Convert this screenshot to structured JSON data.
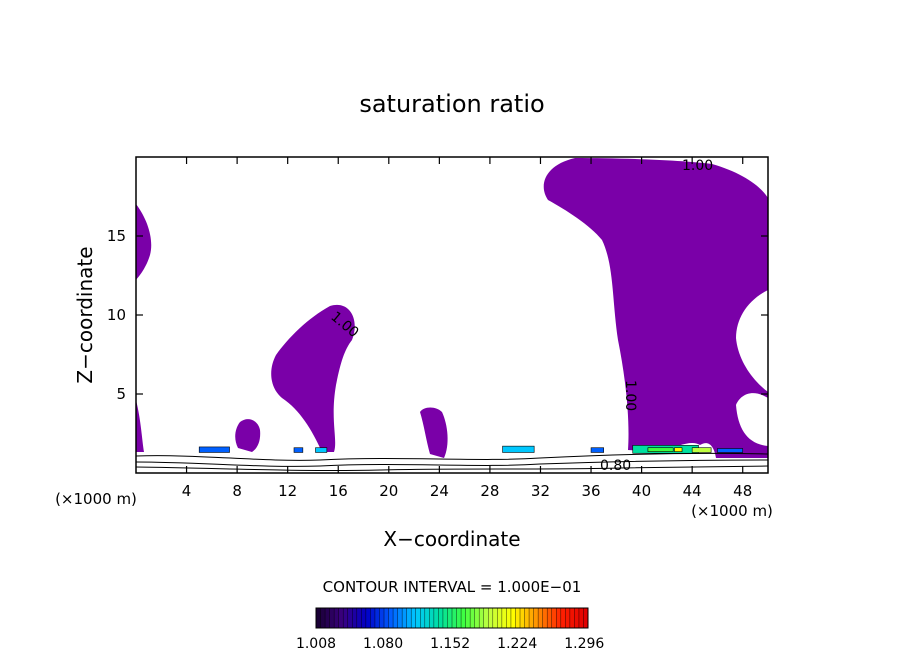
{
  "chart_data": {
    "type": "contour",
    "title": "saturation ratio",
    "xlabel": "X−coordinate",
    "ylabel": "Z−coordinate",
    "x_unit_left": "(×1000 m)",
    "x_unit_right": "(×1000 m)",
    "xlim": [
      0,
      50
    ],
    "ylim": [
      0,
      20
    ],
    "x_ticks": [
      "4",
      "8",
      "12",
      "16",
      "20",
      "24",
      "28",
      "32",
      "36",
      "40",
      "44",
      "48"
    ],
    "y_ticks": [
      "5",
      "10",
      "15"
    ],
    "contour_labels": [
      "1.00",
      "1.00",
      "1.00",
      "0.80"
    ],
    "contour_interval_text": "CONTOUR INTERVAL = 1.000E−01",
    "fill_color": "#7a00a8",
    "colorbar": {
      "ticks": [
        "1.008",
        "1.080",
        "1.152",
        "1.224",
        "1.296"
      ],
      "range": [
        1.008,
        1.3
      ],
      "colors": [
        "#1a0036",
        "#3a0080",
        "#0000c8",
        "#0060ff",
        "#00c8ff",
        "#00e0a0",
        "#40ff40",
        "#c0ff40",
        "#ffff00",
        "#ff9000",
        "#ff2000",
        "#e00000"
      ]
    },
    "saturated_regions": [
      {
        "name": "left-edge-upper",
        "x_range": [
          0,
          1.5
        ],
        "z_range": [
          12.3,
          17.1
        ]
      },
      {
        "name": "left-edge-lower",
        "x_range": [
          0,
          1
        ],
        "z_range": [
          1.3,
          4.5
        ]
      },
      {
        "name": "cloud-near-x14",
        "x_range": [
          11,
          17
        ],
        "z_range": [
          1.0,
          10.6
        ]
      },
      {
        "name": "cloud-near-x8",
        "x_range": [
          8,
          10
        ],
        "z_range": [
          1.2,
          3.3
        ]
      },
      {
        "name": "cloud-near-x23",
        "x_range": [
          22,
          25
        ],
        "z_range": [
          1.0,
          3.9
        ]
      },
      {
        "name": "large-cloud-right",
        "x_range": [
          32,
          50
        ],
        "z_range": [
          1.0,
          19.8
        ]
      }
    ]
  }
}
